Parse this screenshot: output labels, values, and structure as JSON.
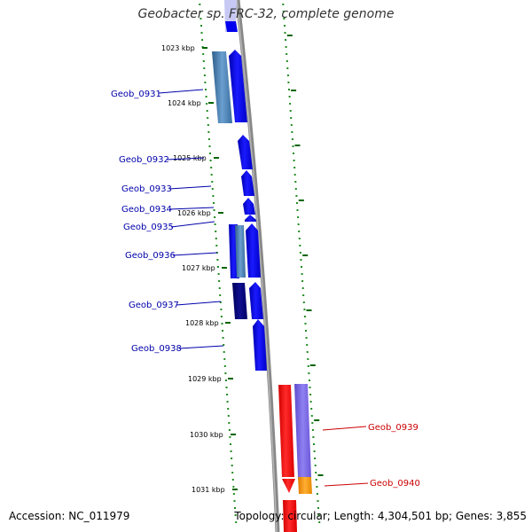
{
  "title": "Geobacter sp. FRC-32, complete genome",
  "accession": "Accession: NC_011979",
  "stats": "Topology: circular; Length: 4,304,501 bp; Genes: 3,855",
  "colors": {
    "backbone": "#888888",
    "plus_dark": "#0000cc",
    "plus_blue": "#0000ff",
    "steel": "#4682b4",
    "navy": "#000080",
    "minus_red": "#ff0000",
    "minus_purple": "#7b68ee",
    "minus_orange": "#ff9900",
    "tick_green": "#006400"
  },
  "kbp_ticks": [
    "1023 kbp",
    "1024 kbp",
    "1025 kbp",
    "1026 kbp",
    "1027 kbp",
    "1028 kbp",
    "1029 kbp",
    "1030 kbp",
    "1031 kbp"
  ],
  "genes_plus": [
    {
      "name": "Geob_0931",
      "color": "#4682b4"
    },
    {
      "name": "Geob_0932",
      "color": "#0000ff"
    },
    {
      "name": "Geob_0933",
      "color": "#0000ff"
    },
    {
      "name": "Geob_0934",
      "color": "#0000ff"
    },
    {
      "name": "Geob_0935",
      "color": "#0000ff"
    },
    {
      "name": "Geob_0936",
      "color": "#4682b4"
    },
    {
      "name": "Geob_0937",
      "color": "#000080"
    },
    {
      "name": "Geob_0938",
      "color": "#0000ff"
    }
  ],
  "genes_minus": [
    {
      "name": "Geob_0939",
      "color": "#7b68ee"
    },
    {
      "name": "Geob_0940",
      "color": "#ff9900"
    }
  ]
}
